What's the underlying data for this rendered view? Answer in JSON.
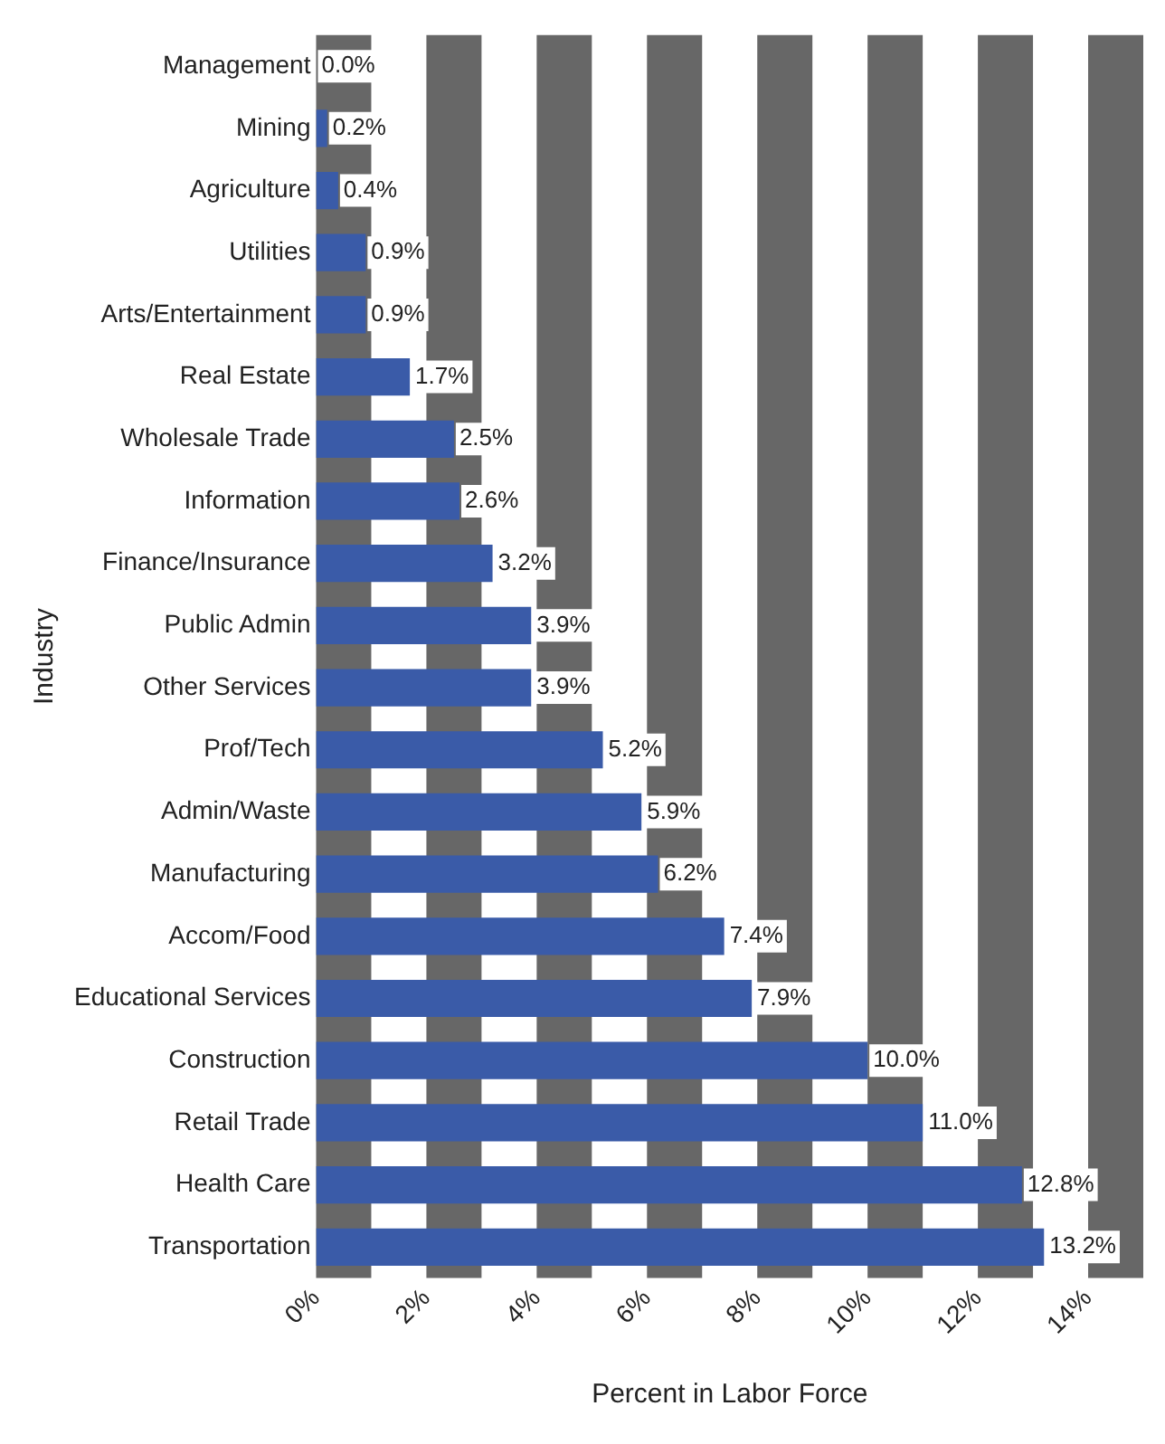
{
  "chart_data": {
    "type": "bar",
    "orientation": "horizontal",
    "xlabel": "Percent in Labor Force",
    "ylabel": "Industry",
    "categories": [
      "Management",
      "Mining",
      "Agriculture",
      "Utilities",
      "Arts/Entertainment",
      "Real Estate",
      "Wholesale Trade",
      "Information",
      "Finance/Insurance",
      "Public Admin",
      "Other Services",
      "Prof/Tech",
      "Admin/Waste",
      "Manufacturing",
      "Accom/Food",
      "Educational Services",
      "Construction",
      "Retail Trade",
      "Health Care",
      "Transportation"
    ],
    "values": [
      0.0,
      0.2,
      0.4,
      0.9,
      0.9,
      1.7,
      2.5,
      2.6,
      3.2,
      3.9,
      3.9,
      5.2,
      5.9,
      6.2,
      7.4,
      7.9,
      10.0,
      11.0,
      12.8,
      13.2
    ],
    "value_labels": [
      "0.0%",
      "0.2%",
      "0.4%",
      "0.9%",
      "0.9%",
      "1.7%",
      "2.5%",
      "2.6%",
      "3.2%",
      "3.9%",
      "3.9%",
      "5.2%",
      "5.9%",
      "6.2%",
      "7.4%",
      "7.9%",
      "10.0%",
      "11.0%",
      "12.8%",
      "13.2%"
    ],
    "color": "#3a5ba8",
    "xlim": [
      0,
      15
    ],
    "xticks": [
      {
        "value": 0,
        "label": "0%"
      },
      {
        "value": 2,
        "label": "2%"
      },
      {
        "value": 4,
        "label": "4%"
      },
      {
        "value": 6,
        "label": "6%"
      },
      {
        "value": 8,
        "label": "8%"
      },
      {
        "value": 10,
        "label": "10%"
      },
      {
        "value": 12,
        "label": "12%"
      },
      {
        "value": 14,
        "label": "14%"
      }
    ],
    "bands": [
      {
        "axis": "x",
        "from": 0,
        "to": 1,
        "color": "#676767"
      },
      {
        "axis": "x",
        "from": 2,
        "to": 3,
        "color": "#676767"
      },
      {
        "axis": "x",
        "from": 4,
        "to": 5,
        "color": "#676767"
      },
      {
        "axis": "x",
        "from": 6,
        "to": 7,
        "color": "#676767"
      },
      {
        "axis": "x",
        "from": 8,
        "to": 9,
        "color": "#676767"
      },
      {
        "axis": "x",
        "from": 10,
        "to": 11,
        "color": "#676767"
      },
      {
        "axis": "x",
        "from": 12,
        "to": 13,
        "color": "#676767"
      },
      {
        "axis": "x",
        "from": 14,
        "to": 15,
        "color": "#676767"
      }
    ],
    "grid": false,
    "legend": false
  }
}
